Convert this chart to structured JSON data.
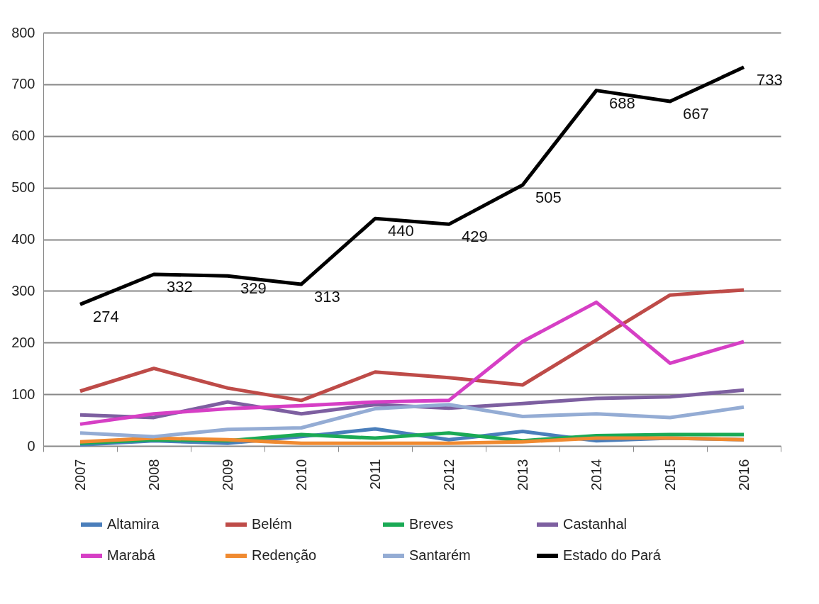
{
  "chart_data": {
    "type": "line",
    "categories": [
      "2007",
      "2008",
      "2009",
      "2010",
      "2011",
      "2012",
      "2013",
      "2014",
      "2015",
      "2016"
    ],
    "series": [
      {
        "name": "Altamira",
        "color": "#4a7ebb",
        "values": [
          2,
          10,
          5,
          18,
          33,
          12,
          28,
          10,
          15,
          12
        ]
      },
      {
        "name": "Belém",
        "color": "#be4b48",
        "values": [
          106,
          150,
          112,
          88,
          143,
          132,
          118,
          205,
          292,
          302
        ]
      },
      {
        "name": "Breves",
        "color": "#1aaa55",
        "values": [
          5,
          12,
          10,
          22,
          15,
          25,
          10,
          20,
          22,
          22
        ]
      },
      {
        "name": "Castanhal",
        "color": "#7d5fa0",
        "values": [
          60,
          55,
          85,
          62,
          80,
          73,
          82,
          92,
          95,
          108
        ]
      },
      {
        "name": "Marabá",
        "color": "#d63fc5",
        "values": [
          42,
          62,
          72,
          78,
          85,
          88,
          202,
          278,
          160,
          202
        ]
      },
      {
        "name": "Redenção",
        "color": "#f08a30",
        "values": [
          8,
          15,
          12,
          5,
          5,
          5,
          8,
          15,
          15,
          12
        ]
      },
      {
        "name": "Santarém",
        "color": "#94acd4",
        "values": [
          25,
          18,
          32,
          35,
          72,
          80,
          57,
          62,
          55,
          75
        ]
      },
      {
        "name": "Estado do Pará",
        "color": "#000000",
        "values": [
          274,
          332,
          329,
          313,
          440,
          429,
          505,
          688,
          667,
          733
        ],
        "value_labels": [
          "274",
          "332",
          "329",
          "313",
          "440",
          "429",
          "505",
          "688",
          "667",
          "733"
        ]
      }
    ],
    "ylim": [
      0,
      800
    ],
    "yticks": [
      0,
      100,
      200,
      300,
      400,
      500,
      600,
      700,
      800
    ],
    "grid": "y",
    "legend": "bottom",
    "marker": "none",
    "line_style": "solid"
  }
}
